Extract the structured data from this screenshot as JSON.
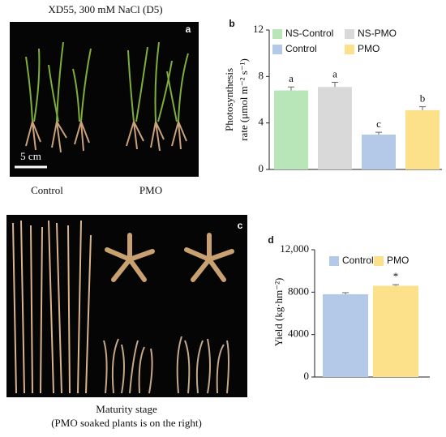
{
  "panels": {
    "a": {
      "letter": "a",
      "title": "XD55, 300 mM NaCl (D5)",
      "scale": "5 cm",
      "left": "Control",
      "right": "PMO"
    },
    "c": {
      "letter": "c",
      "caption": [
        "Maturity stage",
        "(PMO soaked plants is on the right)"
      ]
    }
  },
  "chart_data": [
    {
      "type": "bar",
      "letter": "b",
      "ylabel": [
        "Photosynthesis",
        "rate (μmol m⁻² s⁻¹)"
      ],
      "series": [
        {
          "name": "NS-Control",
          "color": "#b9e6b8",
          "values": [
            6.8
          ],
          "errors": [
            0.3
          ],
          "annotations": [
            "a"
          ]
        },
        {
          "name": "NS-PMO",
          "color": "#d9d9d9",
          "values": [
            7.1
          ],
          "errors": [
            0.4
          ],
          "annotations": [
            "a"
          ]
        },
        {
          "name": "Control",
          "color": "#b4c8e8",
          "values": [
            3.0
          ],
          "errors": [
            0.2
          ],
          "annotations": [
            "c"
          ]
        },
        {
          "name": "PMO",
          "color": "#fde08a",
          "values": [
            5.1
          ],
          "errors": [
            0.3
          ],
          "annotations": [
            "b"
          ]
        }
      ],
      "ylim": [
        0,
        12
      ],
      "yticks": [
        0,
        4,
        8,
        12
      ]
    },
    {
      "type": "bar",
      "letter": "d",
      "ylabel": [
        "Yield (kg·hm⁻²)"
      ],
      "series": [
        {
          "name": "Control",
          "color": "#b4c8e8",
          "values": [
            7800
          ],
          "errors": [
            150
          ],
          "annotations": [
            null
          ]
        },
        {
          "name": "PMO",
          "color": "#fde08a",
          "values": [
            8600
          ],
          "errors": [
            100
          ],
          "annotations": [
            "*"
          ]
        }
      ],
      "ylim": [
        0,
        12000
      ],
      "yticks": [
        0,
        4000,
        8000,
        {
          "value": 12000,
          "label": "12,000"
        }
      ]
    }
  ]
}
